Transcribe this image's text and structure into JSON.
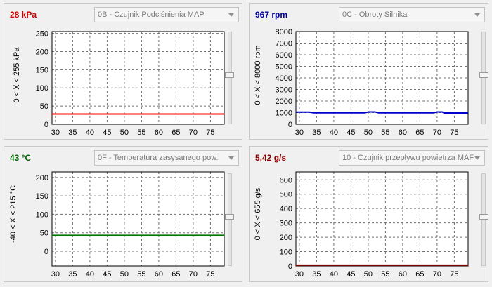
{
  "panels": [
    {
      "value_text": "28 kPa",
      "value_color": "#cc0000",
      "sensor": "0B - Czujnik Podciśnienia MAP",
      "range_label": "0  < X <  255  kPa",
      "line_color": "#ff0000",
      "chart_data": {
        "type": "line",
        "x_ticks": [
          30,
          35,
          40,
          45,
          50,
          55,
          60,
          65,
          70,
          75
        ],
        "xlim": [
          29,
          79
        ],
        "y_ticks": [
          0,
          50,
          100,
          150,
          200,
          250
        ],
        "ylim": [
          0,
          255
        ],
        "series": [
          {
            "x": [
              29,
              79
            ],
            "y": [
              28,
              28
            ]
          }
        ]
      }
    },
    {
      "value_text": "967 rpm",
      "value_color": "#000099",
      "sensor": "0C - Obroty Silnika",
      "range_label": "0  < X <  8000  rpm",
      "line_color": "#0000cc",
      "chart_data": {
        "type": "line",
        "x_ticks": [
          30,
          35,
          40,
          45,
          50,
          55,
          60,
          65,
          70,
          75
        ],
        "xlim": [
          29,
          79
        ],
        "y_ticks": [
          0,
          1000,
          2000,
          3000,
          4000,
          5000,
          6000,
          7000,
          8000
        ],
        "ylim": [
          0,
          8000
        ],
        "series": [
          {
            "x": [
              29,
              33,
              34,
              49,
              50,
              52,
              53,
              69,
              70,
              71.5,
              72,
              79
            ],
            "y": [
              1040,
              1040,
              980,
              980,
              1060,
              1060,
              980,
              980,
              1060,
              1060,
              967,
              967
            ]
          }
        ]
      }
    },
    {
      "value_text": "43 °C",
      "value_color": "#006600",
      "sensor": "0F - Temperatura zasysanego pow.",
      "range_label": "-40  < X <  215  °C",
      "line_color": "#007700",
      "chart_data": {
        "type": "line",
        "x_ticks": [
          30,
          35,
          40,
          45,
          50,
          55,
          60,
          65,
          70,
          75
        ],
        "xlim": [
          29,
          79
        ],
        "y_ticks": [
          0,
          50,
          100,
          150,
          200
        ],
        "ylim": [
          -40,
          215
        ],
        "series": [
          {
            "x": [
              29,
              79
            ],
            "y": [
              43,
              43
            ]
          }
        ]
      }
    },
    {
      "value_text": "5,42 g/s",
      "value_color": "#880000",
      "sensor": "10 - Czujnik przepływu powietrza MAF",
      "range_label": "0  < X <  655  g/s",
      "line_color": "#8b0000",
      "chart_data": {
        "type": "line",
        "x_ticks": [
          30,
          35,
          40,
          45,
          50,
          55,
          60,
          65,
          70,
          75
        ],
        "xlim": [
          29,
          79
        ],
        "y_ticks": [
          0,
          100,
          200,
          300,
          400,
          500,
          600
        ],
        "ylim": [
          0,
          655
        ],
        "series": [
          {
            "x": [
              29,
              79
            ],
            "y": [
              5.42,
              5.42
            ]
          }
        ]
      }
    }
  ]
}
